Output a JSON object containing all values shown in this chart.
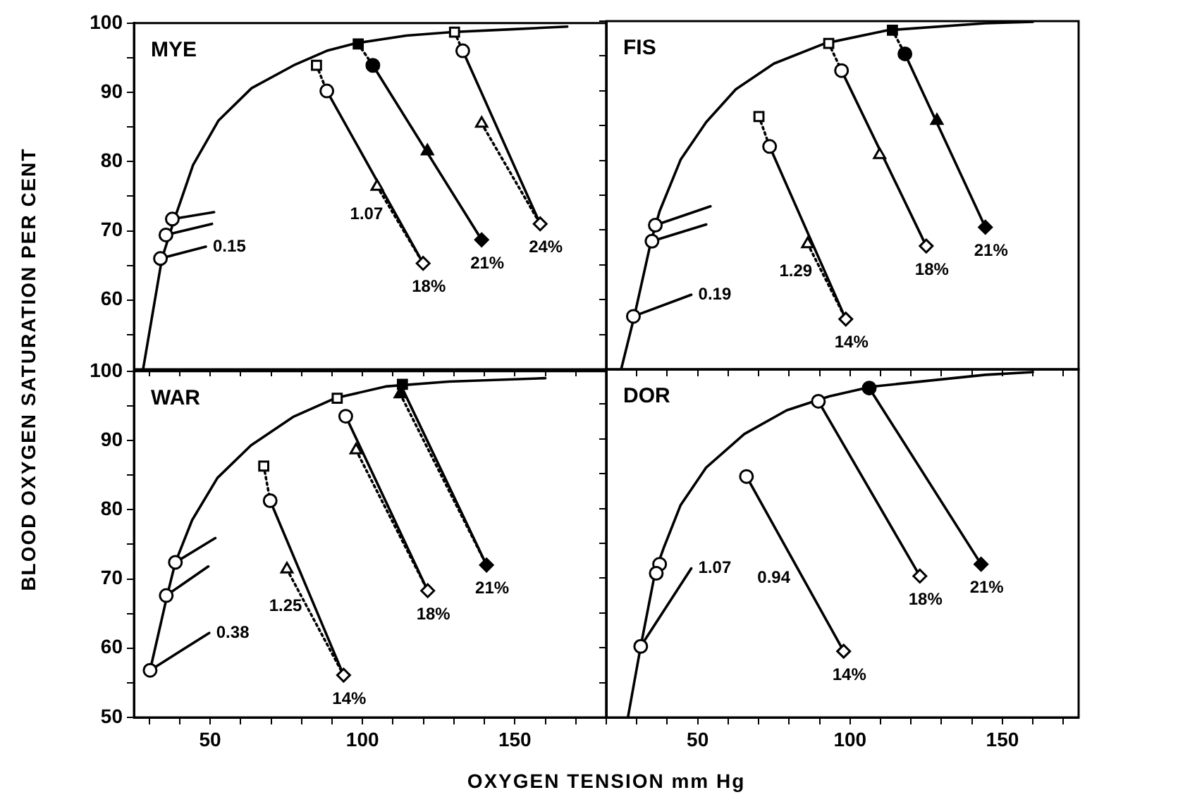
{
  "chart_data": [
    {
      "type": "line",
      "title": "MYE",
      "ylabel": "BLOOD OXYGEN SATURATION PER CENT",
      "xlim": [
        25,
        180
      ],
      "ylim": [
        50,
        100
      ],
      "xticks": [
        {
          "value": 30,
          "label": null
        },
        {
          "value": 40,
          "label": null
        },
        50,
        {
          "value": 60,
          "label": null
        },
        {
          "value": 70,
          "label": null
        },
        {
          "value": 80,
          "label": null
        },
        {
          "value": 90,
          "label": null
        },
        100,
        {
          "value": 110,
          "label": null
        },
        {
          "value": 120,
          "label": null
        },
        {
          "value": 130,
          "label": null
        },
        {
          "value": 140,
          "label": null
        },
        150,
        {
          "value": 160,
          "label": null
        },
        {
          "value": 170,
          "label": null
        }
      ],
      "yticks": [
        {
          "value": 55,
          "label": null
        },
        60,
        {
          "value": 65,
          "label": null
        },
        70,
        {
          "value": 75,
          "label": null
        },
        80,
        {
          "value": 85,
          "label": null
        },
        90,
        {
          "value": 95,
          "label": null
        },
        100
      ],
      "tick_labels": "y",
      "series": [
        {
          "type": "line",
          "color": "#000000",
          "marker": "none",
          "line_style": "solid",
          "x": [
            28,
            34.2,
            38.3,
            44.4,
            52.7,
            63.6,
            77.4,
            88.3,
            97.9,
            114.4,
            129.5,
            148.7,
            167.2
          ],
          "values": [
            50,
            66,
            71.7,
            79.5,
            85.9,
            90.6,
            93.9,
            96,
            97.1,
            98.2,
            98.7,
            99.1,
            99.5
          ]
        },
        {
          "type": "line",
          "color": "#000000",
          "marker": "none",
          "line_style": "solid",
          "x": [
            37.6,
            51.3
          ],
          "values": [
            71.7,
            72.7
          ]
        },
        {
          "type": "line",
          "color": "#000000",
          "marker": "none",
          "line_style": "solid",
          "x": [
            35.5,
            50.6
          ],
          "values": [
            69.4,
            71
          ]
        },
        {
          "type": "line",
          "color": "#000000",
          "marker": "none",
          "line_style": "solid",
          "x": [
            33.7,
            48.6
          ],
          "values": [
            66,
            67.7
          ]
        },
        {
          "type": "line",
          "color": "#000000",
          "marker": "none",
          "line_style": "solid",
          "x": [
            88.3,
            119.9
          ],
          "values": [
            90.2,
            65.3
          ]
        },
        {
          "type": "line",
          "color": "#000000",
          "marker": "none",
          "line_style": "dotted",
          "x": [
            84.9,
            88.3
          ],
          "values": [
            93.9,
            90.2
          ]
        },
        {
          "type": "line",
          "color": "#000000",
          "marker": "none",
          "line_style": "dotted",
          "x": [
            104.8,
            119.9
          ],
          "values": [
            76.4,
            65.3
          ]
        },
        {
          "type": "line",
          "color": "#000000",
          "marker": "none",
          "line_style": "solid",
          "x": [
            103.4,
            139.1
          ],
          "values": [
            93.9,
            68.7
          ]
        },
        {
          "type": "line",
          "color": "#000000",
          "marker": "none",
          "line_style": "dotted",
          "x": [
            98.6,
            103.4
          ],
          "values": [
            97,
            93.9
          ]
        },
        {
          "type": "line",
          "color": "#000000",
          "marker": "none",
          "line_style": "solid",
          "x": [
            132.9,
            158.3
          ],
          "values": [
            96,
            71
          ]
        },
        {
          "type": "line",
          "color": "#000000",
          "marker": "none",
          "line_style": "dotted",
          "x": [
            130.2,
            132.9
          ],
          "values": [
            98.7,
            96
          ]
        },
        {
          "type": "line",
          "color": "#000000",
          "marker": "none",
          "line_style": "dotted",
          "x": [
            139.1,
            158.3
          ],
          "values": [
            85.5,
            71
          ]
        },
        {
          "type": "scatter",
          "color": "#000000",
          "marker": "square",
          "x": [
            84.9,
            98.6,
            130.2
          ],
          "values": [
            93.9,
            97,
            98.7
          ],
          "colors": [
            "#ffffff",
            "#000000",
            "#ffffff"
          ]
        },
        {
          "type": "scatter",
          "color": "#000000",
          "marker": "circle",
          "x": [
            88.3,
            103.4,
            132.9,
            37.6,
            35.5,
            33.7
          ],
          "values": [
            90.2,
            93.9,
            96,
            71.7,
            69.4,
            66
          ],
          "colors": [
            "#ffffff",
            "#000000",
            "#ffffff",
            "#ffffff",
            "#ffffff",
            "#ffffff"
          ]
        },
        {
          "type": "scatter",
          "color": "#000000",
          "marker": "triangle",
          "x": [
            104.8,
            121.3,
            139.1
          ],
          "values": [
            76.4,
            81.5,
            85.5
          ],
          "colors": [
            "#ffffff",
            "#000000",
            "#ffffff"
          ]
        },
        {
          "type": "scatter",
          "color": "#000000",
          "marker": "diamond",
          "x": [
            119.9,
            139.1,
            158.3
          ],
          "values": [
            65.3,
            68.7,
            71
          ],
          "colors": [
            "#ffffff",
            "#000000",
            "#ffffff"
          ]
        }
      ],
      "annotations": [
        {
          "text": "0.15",
          "x": 48.6,
          "y": 67.7
        },
        {
          "text": "1.07",
          "x": 110.9,
          "y": 72.4
        },
        {
          "text": "18%",
          "x": 119.9,
          "y": 65.3
        },
        {
          "text": "21%",
          "x": 139.1,
          "y": 68.7
        },
        {
          "text": "24%",
          "x": 158.3,
          "y": 71
        }
      ]
    },
    {
      "type": "line",
      "title": "FIS",
      "xlim": [
        20,
        175
      ],
      "ylim": [
        50,
        100
      ],
      "xticks": [
        {
          "value": 20,
          "label": null
        },
        {
          "value": 30,
          "label": null
        },
        {
          "value": 40,
          "label": null
        },
        50,
        {
          "value": 60,
          "label": null
        },
        {
          "value": 70,
          "label": null
        },
        {
          "value": 80,
          "label": null
        },
        {
          "value": 90,
          "label": null
        },
        100,
        {
          "value": 110,
          "label": null
        },
        {
          "value": 120,
          "label": null
        },
        {
          "value": 130,
          "label": null
        },
        {
          "value": 140,
          "label": null
        },
        150,
        {
          "value": 160,
          "label": null
        },
        {
          "value": 170,
          "label": null
        }
      ],
      "yticks": [
        {
          "value": 55,
          "label": null
        },
        60,
        {
          "value": 65,
          "label": null
        },
        70,
        {
          "value": 75,
          "label": null
        },
        80,
        {
          "value": 85,
          "label": null
        },
        90,
        {
          "value": 95,
          "label": null
        },
        100
      ],
      "tick_labels": false,
      "series": [
        {
          "type": "line",
          "color": "#000000",
          "marker": "none",
          "line_style": "solid",
          "x": [
            25,
            29.2,
            34.7,
            37.5,
            44.4,
            52.8,
            62.5,
            75,
            91.7,
            112.5,
            144.4,
            160
          ],
          "values": [
            50.2,
            57.6,
            68.4,
            72.7,
            80.1,
            85.5,
            90.2,
            93.9,
            96.8,
            98.7,
            99.7,
            99.9
          ]
        },
        {
          "type": "line",
          "color": "#000000",
          "marker": "none",
          "line_style": "solid",
          "x": [
            36.1,
            54.2
          ],
          "values": [
            70.7,
            73.4
          ]
        },
        {
          "type": "line",
          "color": "#000000",
          "marker": "none",
          "line_style": "solid",
          "x": [
            35,
            52.8
          ],
          "values": [
            68.4,
            70.8
          ]
        },
        {
          "type": "line",
          "color": "#000000",
          "marker": "none",
          "line_style": "solid",
          "x": [
            28.9,
            47.9
          ],
          "values": [
            57.6,
            60.7
          ]
        },
        {
          "type": "line",
          "color": "#000000",
          "marker": "none",
          "line_style": "solid",
          "x": [
            73.6,
            98.6
          ],
          "values": [
            82,
            57.2
          ]
        },
        {
          "type": "line",
          "color": "#000000",
          "marker": "none",
          "line_style": "dotted",
          "x": [
            70.1,
            73.6
          ],
          "values": [
            86.3,
            82
          ]
        },
        {
          "type": "line",
          "color": "#000000",
          "marker": "none",
          "line_style": "dotted",
          "x": [
            86.1,
            98.6
          ],
          "values": [
            68,
            57.2
          ]
        },
        {
          "type": "line",
          "color": "#000000",
          "marker": "none",
          "line_style": "solid",
          "x": [
            97.2,
            125
          ],
          "values": [
            92.9,
            67.7
          ]
        },
        {
          "type": "line",
          "color": "#000000",
          "marker": "none",
          "line_style": "dotted",
          "x": [
            93,
            97.2
          ],
          "values": [
            96.8,
            92.9
          ]
        },
        {
          "type": "line",
          "color": "#000000",
          "marker": "none",
          "line_style": "solid",
          "x": [
            118,
            144.4
          ],
          "values": [
            95.3,
            70.4
          ]
        },
        {
          "type": "line",
          "color": "#000000",
          "marker": "none",
          "line_style": "dotted",
          "x": [
            113.9,
            118
          ],
          "values": [
            98.7,
            95.3
          ]
        },
        {
          "type": "scatter",
          "color": "#000000",
          "marker": "square",
          "x": [
            70.1,
            93,
            113.9
          ],
          "values": [
            86.3,
            96.8,
            98.7
          ],
          "colors": [
            "#ffffff",
            "#ffffff",
            "#000000"
          ]
        },
        {
          "type": "scatter",
          "color": "#000000",
          "marker": "circle",
          "x": [
            73.6,
            97.2,
            118,
            36.1,
            35,
            28.9
          ],
          "values": [
            82,
            92.9,
            95.3,
            70.7,
            68.4,
            57.6
          ],
          "colors": [
            "#ffffff",
            "#ffffff",
            "#000000",
            "#ffffff",
            "#ffffff",
            "#ffffff"
          ]
        },
        {
          "type": "scatter",
          "color": "#000000",
          "marker": "triangle",
          "x": [
            86.1,
            109.7,
            128.5
          ],
          "values": [
            68,
            80.8,
            85.7
          ],
          "colors": [
            "#ffffff",
            "#ffffff",
            "#000000"
          ]
        },
        {
          "type": "scatter",
          "color": "#000000",
          "marker": "diamond",
          "x": [
            98.6,
            125,
            144.4
          ],
          "values": [
            57.2,
            67.7,
            70.4
          ],
          "colors": [
            "#ffffff",
            "#ffffff",
            "#000000"
          ]
        }
      ],
      "annotations": [
        {
          "text": "0.19",
          "x": 47.9,
          "y": 60.7
        },
        {
          "text": "1.29",
          "x": 91.75,
          "y": 64
        },
        {
          "text": "14%",
          "x": 98.6,
          "y": 57.2
        },
        {
          "text": "18%",
          "x": 125,
          "y": 67.7
        },
        {
          "text": "21%",
          "x": 144.4,
          "y": 70.4
        }
      ]
    },
    {
      "type": "line",
      "title": "WAR",
      "xlabel": "OXYGEN TENSION mm Hg",
      "xlim": [
        25,
        180
      ],
      "ylim": [
        50,
        100
      ],
      "xticks": [
        {
          "value": 30,
          "label": null
        },
        {
          "value": 40,
          "label": null
        },
        50,
        {
          "value": 60,
          "label": null
        },
        {
          "value": 70,
          "label": null
        },
        {
          "value": 80,
          "label": null
        },
        {
          "value": 90,
          "label": null
        },
        100,
        {
          "value": 110,
          "label": null
        },
        {
          "value": 120,
          "label": null
        },
        {
          "value": 130,
          "label": null
        },
        {
          "value": 140,
          "label": null
        },
        150,
        {
          "value": 160,
          "label": null
        },
        {
          "value": 170,
          "label": null
        }
      ],
      "yticks": [
        50,
        {
          "value": 55,
          "label": null
        },
        60,
        {
          "value": 65,
          "label": null
        },
        70,
        {
          "value": 75,
          "label": null
        },
        80,
        {
          "value": 85,
          "label": null
        },
        90,
        {
          "value": 95,
          "label": null
        },
        100
      ],
      "series": [
        {
          "type": "line",
          "color": "#000000",
          "marker": "none",
          "line_style": "solid",
          "x": [
            30.3,
            35.9,
            38.6,
            44.1,
            52.4,
            63.4,
            77.2,
            91,
            107.6,
            128.3,
            160
          ],
          "values": [
            56.8,
            67.6,
            72.4,
            78.5,
            84.6,
            89.3,
            93.4,
            96.1,
            97.8,
            98.5,
            99
          ]
        },
        {
          "type": "line",
          "color": "#000000",
          "marker": "none",
          "line_style": "solid",
          "x": [
            38.6,
            51.7
          ],
          "values": [
            72.4,
            75.9
          ]
        },
        {
          "type": "line",
          "color": "#000000",
          "marker": "none",
          "line_style": "solid",
          "x": [
            35.6,
            49.4
          ],
          "values": [
            67.6,
            71.8
          ]
        },
        {
          "type": "line",
          "color": "#000000",
          "marker": "none",
          "line_style": "solid",
          "x": [
            30.3,
            49.7
          ],
          "values": [
            56.8,
            62.2
          ]
        },
        {
          "type": "line",
          "color": "#000000",
          "marker": "none",
          "line_style": "solid",
          "x": [
            69.7,
            93.8
          ],
          "values": [
            81.3,
            56.1
          ]
        },
        {
          "type": "line",
          "color": "#000000",
          "marker": "none",
          "line_style": "dotted",
          "x": [
            67.6,
            69.7
          ],
          "values": [
            86.3,
            81.3
          ]
        },
        {
          "type": "line",
          "color": "#000000",
          "marker": "none",
          "line_style": "dotted",
          "x": [
            75.2,
            93.8
          ],
          "values": [
            71.4,
            56.1
          ]
        },
        {
          "type": "line",
          "color": "#000000",
          "marker": "none",
          "line_style": "solid",
          "x": [
            94.5,
            121.4
          ],
          "values": [
            93.5,
            68.3
          ]
        },
        {
          "type": "line",
          "color": "#000000",
          "marker": "none",
          "line_style": "dotted",
          "x": [
            97.9,
            121.4
          ],
          "values": [
            88.6,
            68.3
          ]
        },
        {
          "type": "line",
          "color": "#000000",
          "marker": "none",
          "line_style": "solid",
          "x": [
            113.1,
            140.7
          ],
          "values": [
            97.5,
            72
          ]
        },
        {
          "type": "line",
          "color": "#000000",
          "marker": "none",
          "line_style": "dotted",
          "x": [
            112.4,
            140.7
          ],
          "values": [
            96.7,
            72
          ]
        },
        {
          "type": "scatter",
          "color": "#000000",
          "marker": "square",
          "x": [
            67.6,
            91.7,
            113.1
          ],
          "values": [
            86.3,
            96.1,
            98.1
          ],
          "colors": [
            "#ffffff",
            "#ffffff",
            "#000000"
          ]
        },
        {
          "type": "scatter",
          "color": "#000000",
          "marker": "circle",
          "x": [
            69.7,
            94.5,
            38.6,
            35.6,
            30.3
          ],
          "values": [
            81.3,
            93.5,
            72.4,
            67.6,
            56.8
          ],
          "colors": [
            "#ffffff",
            "#ffffff",
            "#ffffff",
            "#ffffff",
            "#ffffff"
          ]
        },
        {
          "type": "scatter",
          "color": "#000000",
          "marker": "triangle",
          "x": [
            75.2,
            97.9,
            112.4
          ],
          "values": [
            71.4,
            88.6,
            96.7
          ],
          "colors": [
            "#ffffff",
            "#ffffff",
            "#000000"
          ]
        },
        {
          "type": "scatter",
          "color": "#000000",
          "marker": "diamond",
          "x": [
            93.8,
            121.4,
            140.7
          ],
          "values": [
            56.1,
            68.3,
            72
          ],
          "colors": [
            "#ffffff",
            "#ffffff",
            "#000000"
          ]
        }
      ],
      "annotations": [
        {
          "text": "0.38",
          "x": 49.7,
          "y": 62.2
        },
        {
          "text": "1.25",
          "x": 84.33,
          "y": 66
        },
        {
          "text": "14%",
          "x": 93.8,
          "y": 56.1
        },
        {
          "text": "18%",
          "x": 121.4,
          "y": 68.3
        },
        {
          "text": "21%",
          "x": 140.7,
          "y": 72
        }
      ]
    },
    {
      "type": "line",
      "title": "DOR",
      "xlim": [
        20,
        175
      ],
      "ylim": [
        50,
        100
      ],
      "xticks": [
        {
          "value": 20,
          "label": null
        },
        {
          "value": 30,
          "label": null
        },
        {
          "value": 40,
          "label": null
        },
        50,
        {
          "value": 60,
          "label": null
        },
        {
          "value": 70,
          "label": null
        },
        {
          "value": 80,
          "label": null
        },
        {
          "value": 90,
          "label": null
        },
        100,
        {
          "value": 110,
          "label": null
        },
        {
          "value": 120,
          "label": null
        },
        {
          "value": 130,
          "label": null
        },
        {
          "value": 140,
          "label": null
        },
        150,
        {
          "value": 160,
          "label": null
        },
        {
          "value": 170,
          "label": null
        }
      ],
      "yticks": [
        50,
        {
          "value": 55,
          "label": null
        },
        60,
        {
          "value": 65,
          "label": null
        },
        70,
        {
          "value": 75,
          "label": null
        },
        80,
        {
          "value": 85,
          "label": null
        },
        90,
        {
          "value": 95,
          "label": null
        },
        100
      ],
      "tick_labels": "x",
      "series": [
        {
          "type": "line",
          "color": "#000000",
          "marker": "none",
          "line_style": "solid",
          "x": [
            27.1,
            31.3,
            36.1,
            38.9,
            44.4,
            52.8,
            65.3,
            79.2,
            93.1,
            107,
            144.4,
            160
          ],
          "values": [
            50,
            60.2,
            71,
            74.4,
            80.5,
            85.9,
            90.7,
            94.1,
            96.1,
            97.5,
            99.2,
            99.6
          ]
        },
        {
          "type": "line",
          "color": "#000000",
          "marker": "none",
          "line_style": "solid",
          "x": [
            31.3,
            47.9
          ],
          "values": [
            60.2,
            71.4
          ]
        },
        {
          "type": "line",
          "color": "#000000",
          "marker": "none",
          "line_style": "solid",
          "x": [
            66,
            97.9
          ],
          "values": [
            84.6,
            59.5
          ]
        },
        {
          "type": "line",
          "color": "#000000",
          "marker": "none",
          "line_style": "solid",
          "x": [
            89.6,
            122.9
          ],
          "values": [
            95.4,
            70.3
          ]
        },
        {
          "type": "line",
          "color": "#000000",
          "marker": "none",
          "line_style": "solid",
          "x": [
            106.3,
            143
          ],
          "values": [
            97.3,
            72
          ]
        },
        {
          "type": "scatter",
          "color": "#000000",
          "marker": "circle",
          "x": [
            66,
            89.6,
            106.3,
            37.5,
            36.4,
            31.3
          ],
          "values": [
            84.6,
            95.4,
            97.3,
            72,
            70.7,
            60.2
          ],
          "colors": [
            "#ffffff",
            "#ffffff",
            "#000000",
            "#ffffff",
            "#ffffff",
            "#ffffff"
          ]
        },
        {
          "type": "scatter",
          "color": "#000000",
          "marker": "diamond",
          "x": [
            97.9,
            122.9,
            143
          ],
          "values": [
            59.5,
            70.3,
            72
          ],
          "colors": [
            "#ffffff",
            "#ffffff",
            "#000000"
          ]
        }
      ],
      "annotations": [
        {
          "text": "1.07",
          "x": 47.9,
          "y": 71.4
        },
        {
          "text": "0.94",
          "x": 84.55,
          "y": 70
        },
        {
          "text": "14%",
          "x": 97.9,
          "y": 59.5
        },
        {
          "text": "18%",
          "x": 122.9,
          "y": 70.3
        },
        {
          "text": "21%",
          "x": 143,
          "y": 72
        }
      ]
    }
  ]
}
